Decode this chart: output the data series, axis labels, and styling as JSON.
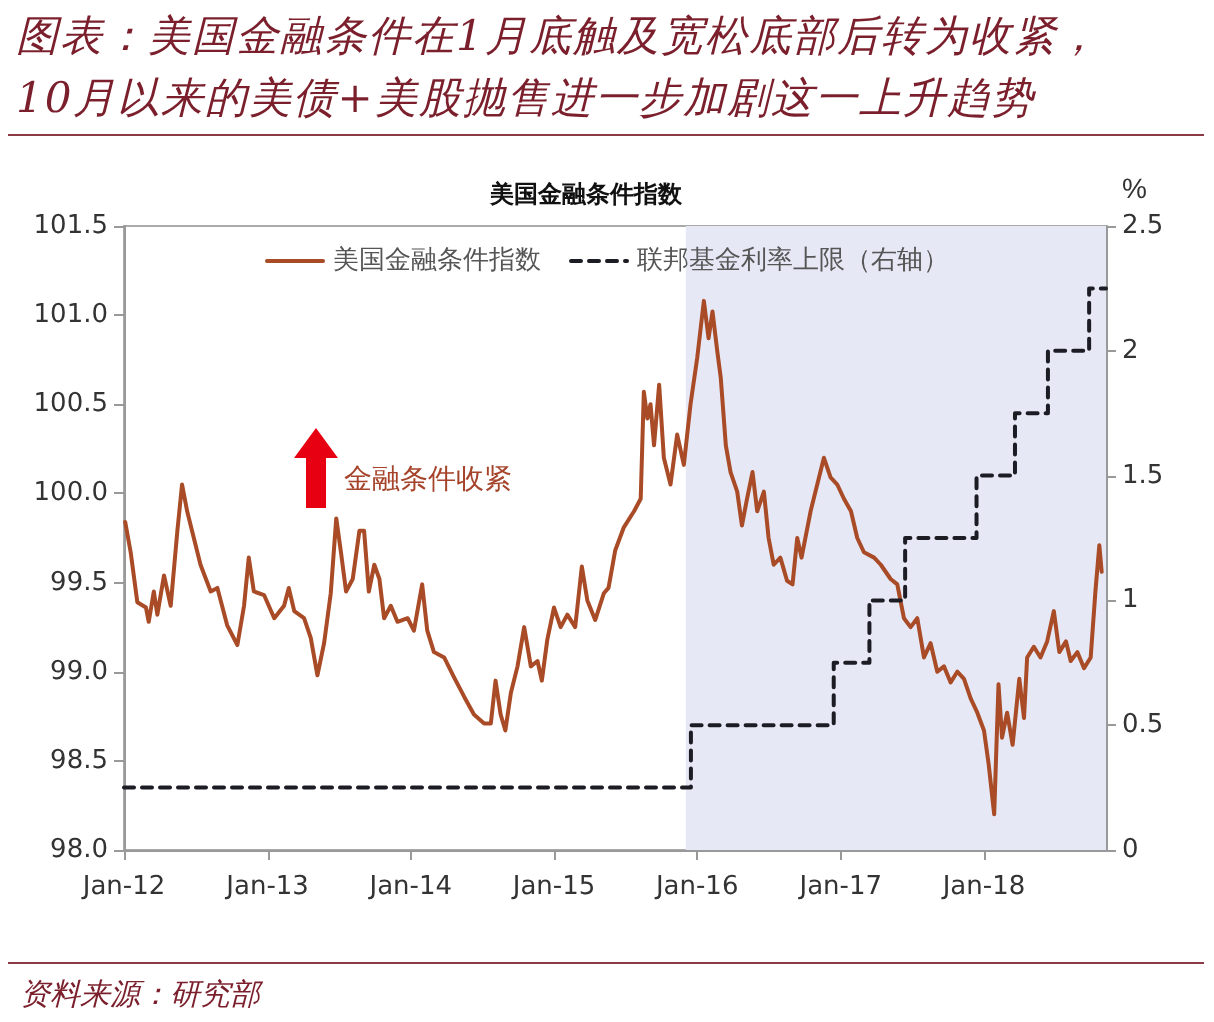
{
  "chart_data": {
    "type": "line",
    "title": "图表：美国金融条件在1月底触及宽松底部后转为收紧，10月以来的美债+美股抛售进一步加剧这一上升趋势",
    "subtitle": "美国金融条件指数",
    "y2label": "%",
    "annotations": [
      "金融条件收紧",
      "资料来源：研究部"
    ],
    "xlim": [
      "2012-01-01",
      "2018-11-08"
    ],
    "xticks": [
      {
        "value": "2012-01-01",
        "label": "Jan-12"
      },
      {
        "value": "2013-01-01",
        "label": "Jan-13"
      },
      {
        "value": "2014-01-01",
        "label": "Jan-14"
      },
      {
        "value": "2015-01-01",
        "label": "Jan-15"
      },
      {
        "value": "2016-01-01",
        "label": "Jan-16"
      },
      {
        "value": "2017-01-01",
        "label": "Jan-17"
      },
      {
        "value": "2018-01-01",
        "label": "Jan-18"
      }
    ],
    "ylim": [
      98,
      101.5
    ],
    "yticks": [
      {
        "value": 98,
        "label": "98.0"
      },
      98.5,
      {
        "value": 99,
        "label": "99.0"
      },
      99.5,
      {
        "value": 100,
        "label": "100.0"
      },
      100.5,
      {
        "value": 101,
        "label": "101.0"
      },
      101.5
    ],
    "y2lim": [
      0,
      2.5
    ],
    "y2ticks": [
      0,
      0.5,
      1,
      1.5,
      2,
      2.5
    ],
    "legend": "top",
    "grid": false,
    "marker": "none",
    "bands": [
      {
        "axis": "x",
        "from": "2015-12-03",
        "to": "2018-11-08",
        "color": "#e6e9f5"
      }
    ],
    "series": [
      {
        "name": "美国金融条件指数",
        "color": "#a84b26",
        "line_style": "solid",
        "x": [
          "2012-01-04",
          "2012-01-18",
          "2012-02-04",
          "2012-02-26",
          "2012-03-04",
          "2012-03-17",
          "2012-03-26",
          "2012-04-12",
          "2012-04-29",
          "2012-05-16",
          "2012-05-28",
          "2012-06-10",
          "2012-06-27",
          "2012-07-14",
          "2012-08-09",
          "2012-08-26",
          "2012-09-20",
          "2012-10-16",
          "2012-11-02",
          "2012-11-14",
          "2012-11-27",
          "2012-12-23",
          "2013-01-18",
          "2013-02-12",
          "2013-02-24",
          "2013-03-10",
          "2013-04-04",
          "2013-04-21",
          "2013-05-08",
          "2013-05-25",
          "2013-06-11",
          "2013-06-25",
          "2013-07-07",
          "2013-07-20",
          "2013-08-06",
          "2013-08-23",
          "2013-09-04",
          "2013-09-16",
          "2013-09-30",
          "2013-10-13",
          "2013-10-25",
          "2013-11-11",
          "2013-11-28",
          "2013-12-24",
          "2014-01-09",
          "2014-01-30",
          "2014-02-12",
          "2014-03-01",
          "2014-03-27",
          "2014-04-21",
          "2014-05-17",
          "2014-06-11",
          "2014-07-07",
          "2014-07-24",
          "2014-08-05",
          "2014-08-18",
          "2014-08-30",
          "2014-09-13",
          "2014-09-30",
          "2014-10-17",
          "2014-11-03",
          "2014-11-20",
          "2014-12-01",
          "2014-12-15",
          "2015-01-01",
          "2015-01-18",
          "2015-02-04",
          "2015-02-24",
          "2015-03-13",
          "2015-03-27",
          "2015-04-16",
          "2015-05-08",
          "2015-05-20",
          "2015-06-06",
          "2015-06-28",
          "2015-07-24",
          "2015-08-10",
          "2015-08-18",
          "2015-08-27",
          "2015-09-04",
          "2015-09-13",
          "2015-09-26",
          "2015-10-08",
          "2015-10-25",
          "2015-11-11",
          "2015-11-28",
          "2015-12-15",
          "2016-01-01",
          "2016-01-18",
          "2016-01-30",
          "2016-02-09",
          "2016-02-21",
          "2016-03-01",
          "2016-03-14",
          "2016-03-26",
          "2016-04-12",
          "2016-04-24",
          "2016-05-07",
          "2016-05-21",
          "2016-06-02",
          "2016-06-19",
          "2016-07-01",
          "2016-07-14",
          "2016-07-31",
          "2016-08-17",
          "2016-08-31",
          "2016-09-12",
          "2016-09-23",
          "2016-10-16",
          "2016-11-02",
          "2016-11-19",
          "2016-12-06",
          "2016-12-23",
          "2017-01-09",
          "2017-01-27",
          "2017-02-12",
          "2017-03-01",
          "2017-03-27",
          "2017-04-13",
          "2017-05-08",
          "2017-05-25",
          "2017-06-11",
          "2017-06-28",
          "2017-07-15",
          "2017-08-01",
          "2017-08-18",
          "2017-09-04",
          "2017-09-21",
          "2017-10-08",
          "2017-10-25",
          "2017-11-11",
          "2017-11-28",
          "2017-12-15",
          "2018-01-01",
          "2018-01-13",
          "2018-01-27",
          "2018-02-07",
          "2018-02-16",
          "2018-03-01",
          "2018-03-15",
          "2018-04-01",
          "2018-04-13",
          "2018-04-21",
          "2018-05-08",
          "2018-05-25",
          "2018-06-11",
          "2018-06-28",
          "2018-07-12",
          "2018-07-29",
          "2018-08-10",
          "2018-08-27",
          "2018-09-13",
          "2018-09-30",
          "2018-10-12",
          "2018-10-22",
          "2018-10-28"
        ],
        "values": [
          99.84,
          99.67,
          99.39,
          99.36,
          99.28,
          99.45,
          99.32,
          99.54,
          99.37,
          99.79,
          100.05,
          99.9,
          99.75,
          99.6,
          99.45,
          99.47,
          99.26,
          99.15,
          99.37,
          99.64,
          99.45,
          99.43,
          99.3,
          99.37,
          99.47,
          99.34,
          99.3,
          99.19,
          98.98,
          99.16,
          99.44,
          99.86,
          99.67,
          99.45,
          99.52,
          99.79,
          99.79,
          99.45,
          99.6,
          99.52,
          99.3,
          99.37,
          99.28,
          99.3,
          99.23,
          99.49,
          99.23,
          99.11,
          99.08,
          98.97,
          98.86,
          98.76,
          98.71,
          98.71,
          98.95,
          98.76,
          98.67,
          98.88,
          99.03,
          99.25,
          99.03,
          99.06,
          98.95,
          99.18,
          99.36,
          99.25,
          99.32,
          99.25,
          99.59,
          99.4,
          99.29,
          99.44,
          99.47,
          99.68,
          99.81,
          99.9,
          99.97,
          100.57,
          100.42,
          100.5,
          100.27,
          100.61,
          100.2,
          100.05,
          100.33,
          100.16,
          100.5,
          100.76,
          101.08,
          100.87,
          101.02,
          100.8,
          100.65,
          100.27,
          100.12,
          100.01,
          99.82,
          99.97,
          100.12,
          99.9,
          100.01,
          99.75,
          99.6,
          99.64,
          99.51,
          99.49,
          99.75,
          99.64,
          99.9,
          100.05,
          100.2,
          100.09,
          100.05,
          99.97,
          99.9,
          99.75,
          99.67,
          99.64,
          99.6,
          99.52,
          99.49,
          99.3,
          99.25,
          99.3,
          99.08,
          99.16,
          99,
          99.03,
          98.94,
          99,
          98.96,
          98.85,
          98.77,
          98.67,
          98.48,
          98.2,
          98.93,
          98.63,
          98.77,
          98.59,
          98.96,
          98.74,
          99.08,
          99.14,
          99.08,
          99.17,
          99.34,
          99.11,
          99.17,
          99.06,
          99.11,
          99.02,
          99.08,
          99.45,
          99.71,
          99.56
        ]
      },
      {
        "name": "联邦基金利率上限（右轴）",
        "type": "step",
        "axis": "y2",
        "color": "#1c1c24",
        "line_style": "dashed",
        "x": [
          "2012-01-01",
          "2015-12-16",
          "2016-12-14",
          "2017-03-15",
          "2017-06-14",
          "2017-12-13",
          "2018-03-21",
          "2018-06-13",
          "2018-09-26",
          "2018-11-08"
        ],
        "values": [
          0.25,
          0.5,
          0.75,
          1,
          1.25,
          1.5,
          1.75,
          2,
          2.25,
          2.25
        ]
      }
    ]
  }
}
